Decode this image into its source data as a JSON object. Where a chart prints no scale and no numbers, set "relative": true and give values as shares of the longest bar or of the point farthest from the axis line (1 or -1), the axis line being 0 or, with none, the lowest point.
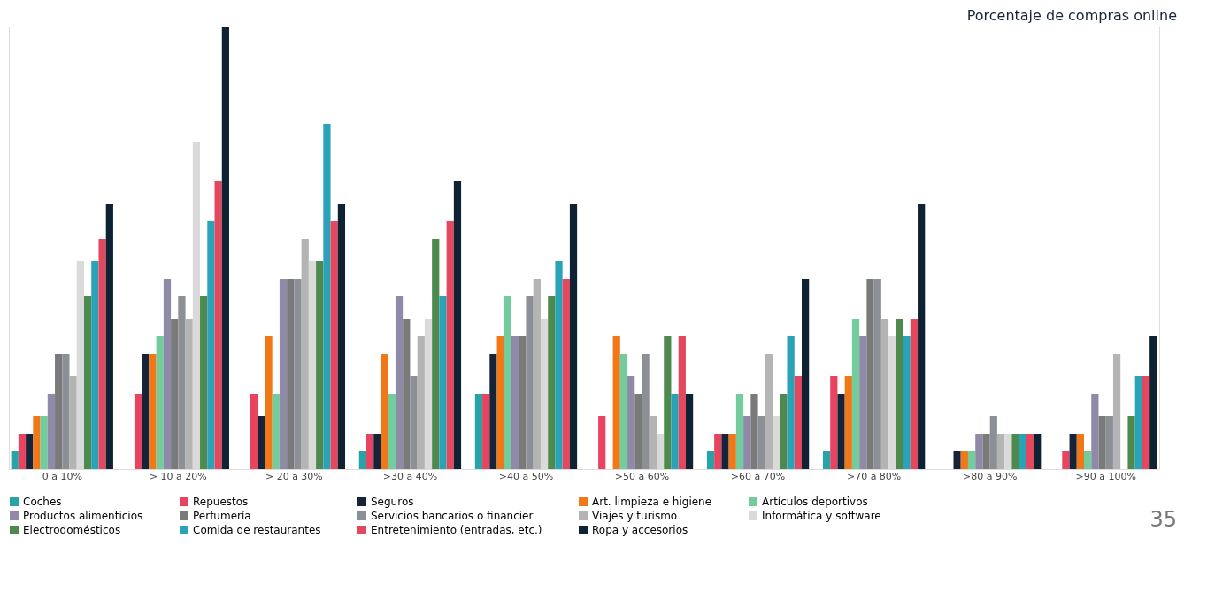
{
  "chart_data": {
    "type": "bar",
    "title": "Porcentaje de compras online",
    "relative": true,
    "legend": "bottom",
    "grid": false,
    "categories": [
      "0 a 10%",
      "> 10 a 20%",
      "> 20 a 30%",
      ">30 a 40%",
      ">40 a 50%",
      ">50 a 60%",
      ">60 a 70%",
      ">70 a 80%",
      ">80 a 90%",
      ">90 a 100%"
    ],
    "series": [
      {
        "name": "Coches",
        "color": "#2aa3a8",
        "values": [
          0.04,
          0,
          0,
          0.04,
          0.17,
          0,
          0.04,
          0.04,
          0,
          0
        ]
      },
      {
        "name": "Repuestos",
        "color": "#e8435f",
        "values": [
          0.08,
          0.17,
          0.17,
          0.08,
          0.17,
          0.12,
          0.08,
          0.21,
          0,
          0.04
        ]
      },
      {
        "name": "Seguros",
        "color": "#15243a",
        "values": [
          0.08,
          0.26,
          0.12,
          0.08,
          0.26,
          0,
          0.08,
          0.17,
          0.04,
          0.08
        ]
      },
      {
        "name": "Art. limpieza e higiene",
        "color": "#f07818",
        "values": [
          0.12,
          0.26,
          0.3,
          0.26,
          0.3,
          0.3,
          0.08,
          0.21,
          0.04,
          0.08
        ]
      },
      {
        "name": "Artículos deportivos",
        "color": "#72cc9c",
        "values": [
          0.12,
          0.3,
          0.17,
          0.17,
          0.39,
          0.26,
          0.17,
          0.34,
          0.04,
          0.04
        ]
      },
      {
        "name": "Productos alimenticios",
        "color": "#8e8aa8",
        "values": [
          0.17,
          0.43,
          0.43,
          0.39,
          0.3,
          0.21,
          0.12,
          0.3,
          0.08,
          0.17
        ]
      },
      {
        "name": "Perfumería",
        "color": "#7a7a7a",
        "values": [
          0.26,
          0.34,
          0.43,
          0.34,
          0.3,
          0.17,
          0.17,
          0.43,
          0.08,
          0.12
        ]
      },
      {
        "name": "Servicios bancarios o financier",
        "color": "#8c9096",
        "values": [
          0.26,
          0.39,
          0.43,
          0.21,
          0.39,
          0.26,
          0.12,
          0.43,
          0.12,
          0.12
        ]
      },
      {
        "name": "Viajes y turismo",
        "color": "#b4b4b4",
        "values": [
          0.21,
          0.34,
          0.52,
          0.3,
          0.43,
          0.12,
          0.26,
          0.34,
          0.08,
          0.26
        ]
      },
      {
        "name": "Informática y software",
        "color": "#dadada",
        "values": [
          0.47,
          0.74,
          0.47,
          0.34,
          0.34,
          0.08,
          0.12,
          0.3,
          0.08,
          0
        ]
      },
      {
        "name": "Electrodomésticos",
        "color": "#4e8a4e",
        "values": [
          0.39,
          0.39,
          0.47,
          0.52,
          0.39,
          0.3,
          0.17,
          0.34,
          0.08,
          0.12
        ]
      },
      {
        "name": "Comida de restaurantes",
        "color": "#2aa3b8",
        "values": [
          0.47,
          0.56,
          0.78,
          0.39,
          0.47,
          0.17,
          0.3,
          0.3,
          0.08,
          0.21
        ]
      },
      {
        "name": "Entretenimiento (entradas, etc.)",
        "color": "#e4485e",
        "values": [
          0.52,
          0.65,
          0.56,
          0.56,
          0.43,
          0.3,
          0.21,
          0.34,
          0.08,
          0.21
        ]
      },
      {
        "name": "Ropa y accesorios",
        "color": "#0f2233",
        "values": [
          0.6,
          1,
          0.6,
          0.65,
          0.6,
          0.17,
          0.43,
          0.6,
          0.08,
          0.3
        ]
      }
    ],
    "annotations": [
      "35"
    ]
  }
}
